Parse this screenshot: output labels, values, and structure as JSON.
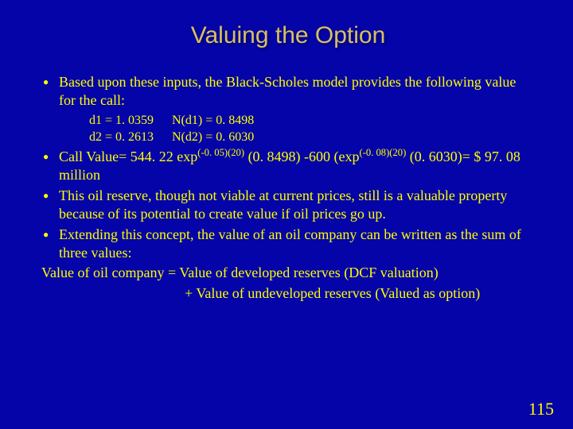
{
  "colors": {
    "background": "#0404a8",
    "title_color": "#d8c060",
    "body_color": "#ffff00",
    "pagenum_color": "#ffff00"
  },
  "typography": {
    "title_fontsize": 30,
    "body_fontsize": 18,
    "sub_fontsize": 16,
    "pagenum_fontsize": 22
  },
  "title": "Valuing the Option",
  "bullets": {
    "b1": "Based upon these inputs, the Black-Scholes model provides the following value for the call:",
    "sub": {
      "d1_label": "d1 = 1. 0359",
      "d1_val": "N(d1) = 0. 8498",
      "d2_label": "d2 = 0. 2613",
      "d2_val": "N(d2) = 0. 6030"
    },
    "b2_pre": "Call Value= 544. 22 exp",
    "b2_exp1": "(-0. 05)(20)",
    "b2_mid": " (0. 8498) -600 (exp",
    "b2_exp2": "(-0. 08)(20)",
    "b2_post": " (0. 6030)= $ 97. 08 million",
    "b3": "This oil reserve, though not viable at current prices, still is a valuable property because of its potential to create value if oil prices go up.",
    "b4": "Extending this concept, the value of an oil company can be written as the sum of three values:"
  },
  "footer": {
    "line1": "Value of oil company = Value of developed reserves (DCF valuation)",
    "line2": "+ Value of undeveloped reserves (Valued as option)"
  },
  "pagenum": "115"
}
